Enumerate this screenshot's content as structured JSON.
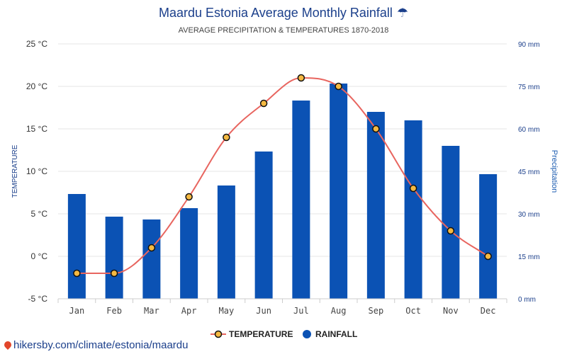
{
  "chart_data": {
    "type": "bar",
    "title": "Maardu Estonia Average Monthly Rainfall",
    "title_icon": "umbrella-icon",
    "subtitle": "AVERAGE PRECIPITATION & TEMPERATURES 1870-2018",
    "categories": [
      "Jan",
      "Feb",
      "Mar",
      "Apr",
      "May",
      "Jun",
      "Jul",
      "Aug",
      "Sep",
      "Oct",
      "Nov",
      "Dec"
    ],
    "series": [
      {
        "name": "RAINFALL",
        "type": "bar",
        "axis": "right",
        "color": "#0b52b4",
        "values": [
          37,
          29,
          28,
          32,
          40,
          52,
          70,
          76,
          66,
          63,
          54,
          44
        ]
      },
      {
        "name": "TEMPERATURE",
        "type": "line",
        "axis": "left",
        "color": "#e8655f",
        "marker_fill": "#f5b942",
        "values": [
          -2,
          -2,
          1,
          7,
          14,
          18,
          21,
          20,
          15,
          8,
          3,
          0
        ]
      }
    ],
    "left_axis": {
      "label": "TEMPERATURE",
      "min": -5,
      "max": 25,
      "ticks": [
        -5,
        0,
        5,
        10,
        15,
        20,
        25
      ],
      "tick_labels": [
        "-5 °C",
        "0 °C",
        "5 °C",
        "10 °C",
        "15 °C",
        "20 °C",
        "25 °C"
      ]
    },
    "right_axis": {
      "label": "Precipitation",
      "min": 0,
      "max": 90,
      "ticks": [
        0,
        15,
        30,
        45,
        60,
        75,
        90
      ],
      "tick_labels": [
        "0 mm",
        "15 mm",
        "30 mm",
        "45 mm",
        "60 mm",
        "75 mm",
        "90 mm"
      ]
    },
    "grid": true,
    "legend_position": "bottom-center",
    "legend": [
      "TEMPERATURE",
      "RAINFALL"
    ]
  },
  "footer": {
    "link_text": "hikersby.com/climate/estonia/maardu"
  }
}
